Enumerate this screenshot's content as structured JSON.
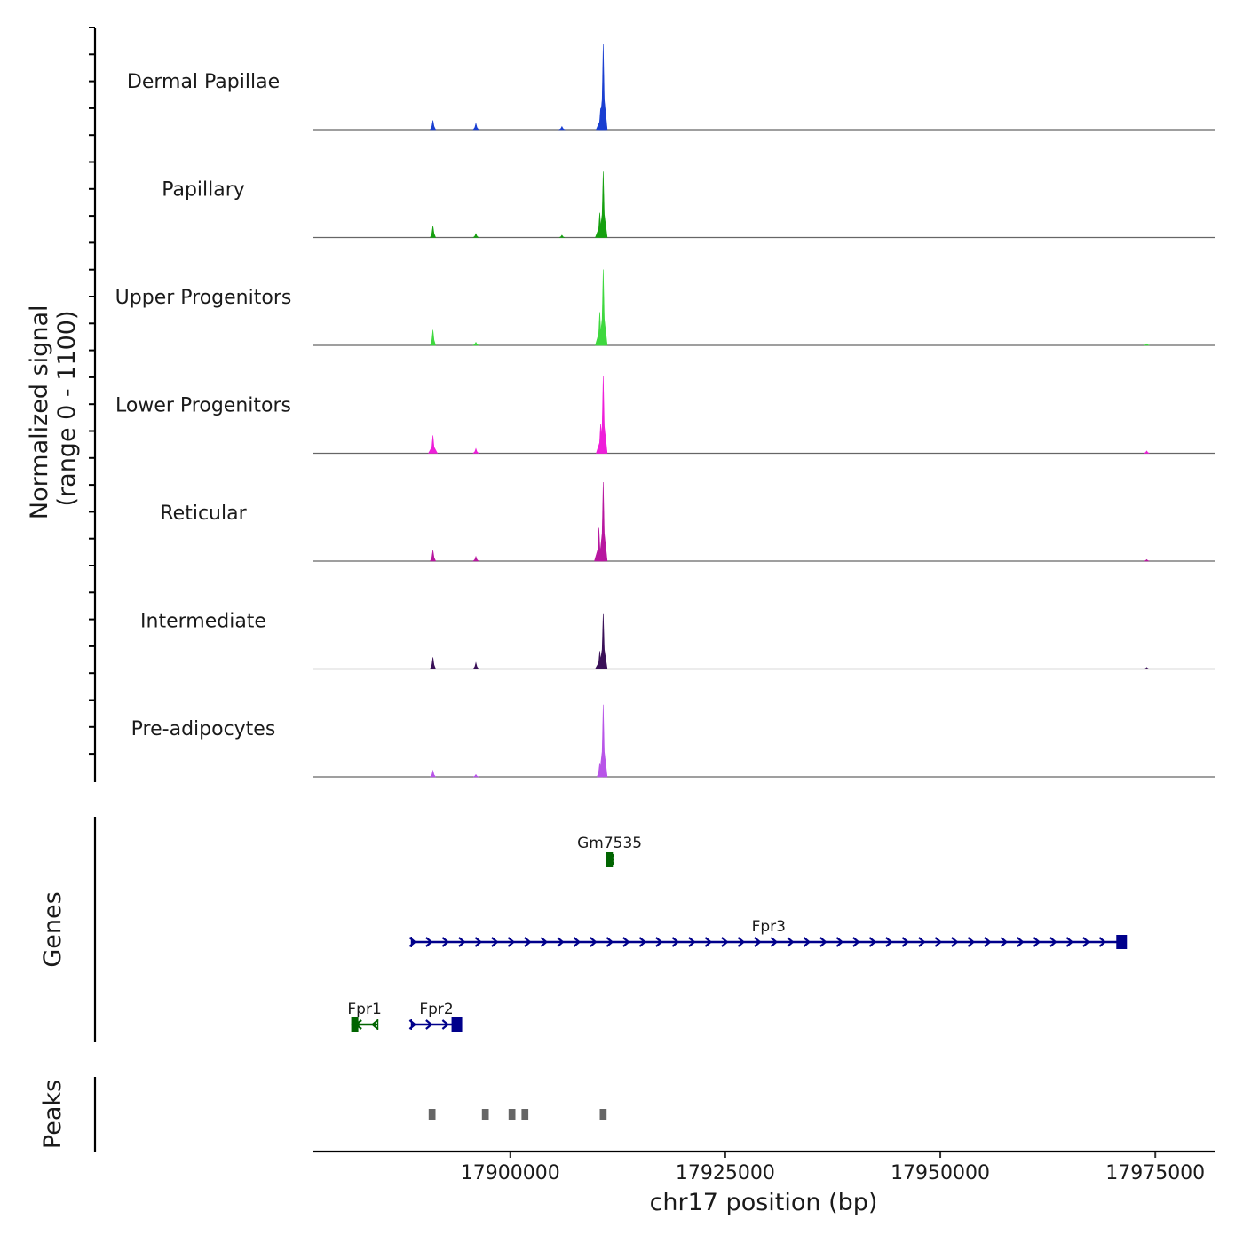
{
  "chart_data": {
    "type": "area",
    "title": "",
    "region": {
      "chrom": "chr17",
      "start": 17877000,
      "end": 17982000
    },
    "ylabel_lines": [
      "Normalized signal",
      "(range 0 - 1100)"
    ],
    "ylim": [
      0,
      1100
    ],
    "xlabel": "chr17 position (bp)",
    "xticks": [
      17900000,
      17925000,
      17950000,
      17975000
    ],
    "xtick_labels": [
      "17900000",
      "17925000",
      "17950000",
      "17975000"
    ],
    "tracks": [
      {
        "name": "Dermal Papillae",
        "color": "#1a3fd1",
        "peaks": [
          {
            "pos": 17891000,
            "value": 120
          },
          {
            "pos": 17896000,
            "value": 80
          },
          {
            "pos": 17906000,
            "value": 40
          },
          {
            "pos": 17910800,
            "value": 1100
          },
          {
            "pos": 17910500,
            "value": 280
          }
        ]
      },
      {
        "name": "Papillary",
        "color": "#16a010",
        "peaks": [
          {
            "pos": 17891000,
            "value": 150
          },
          {
            "pos": 17896000,
            "value": 50
          },
          {
            "pos": 17906000,
            "value": 30
          },
          {
            "pos": 17910800,
            "value": 850
          },
          {
            "pos": 17910400,
            "value": 320
          }
        ]
      },
      {
        "name": "Upper Progenitors",
        "color": "#3fd83f",
        "peaks": [
          {
            "pos": 17891000,
            "value": 200
          },
          {
            "pos": 17896000,
            "value": 40
          },
          {
            "pos": 17910800,
            "value": 980
          },
          {
            "pos": 17910400,
            "value": 430
          },
          {
            "pos": 17974000,
            "value": 20
          }
        ]
      },
      {
        "name": "Lower Progenitors",
        "color": "#ee1fd9",
        "peaks": [
          {
            "pos": 17891000,
            "value": 230
          },
          {
            "pos": 17896000,
            "value": 60
          },
          {
            "pos": 17910800,
            "value": 1000
          },
          {
            "pos": 17910500,
            "value": 380
          },
          {
            "pos": 17974000,
            "value": 30
          }
        ]
      },
      {
        "name": "Reticular",
        "color": "#b7179f",
        "peaks": [
          {
            "pos": 17891000,
            "value": 140
          },
          {
            "pos": 17896000,
            "value": 60
          },
          {
            "pos": 17910800,
            "value": 1020
          },
          {
            "pos": 17910300,
            "value": 430
          },
          {
            "pos": 17974000,
            "value": 20
          }
        ]
      },
      {
        "name": "Intermediate",
        "color": "#3a1158",
        "peaks": [
          {
            "pos": 17891000,
            "value": 150
          },
          {
            "pos": 17896000,
            "value": 80
          },
          {
            "pos": 17910800,
            "value": 720
          },
          {
            "pos": 17910400,
            "value": 230
          },
          {
            "pos": 17974000,
            "value": 20
          }
        ]
      },
      {
        "name": "Pre-adipocytes",
        "color": "#b855e8",
        "peaks": [
          {
            "pos": 17891000,
            "value": 80
          },
          {
            "pos": 17896000,
            "value": 30
          },
          {
            "pos": 17910800,
            "value": 930
          },
          {
            "pos": 17910400,
            "value": 180
          }
        ]
      }
    ],
    "genes_label": "Genes",
    "genes": [
      {
        "name": "Gm7535",
        "start": 17911100,
        "end": 17912000,
        "strand": "-",
        "color": "#006400",
        "row": 0
      },
      {
        "name": "Fpr3",
        "start": 17888500,
        "end": 17971600,
        "strand": "+",
        "color": "#00008b",
        "row": 1
      },
      {
        "name": "Fpr1",
        "start": 17881500,
        "end": 17884600,
        "strand": "-",
        "color": "#006400",
        "row": 2
      },
      {
        "name": "Fpr2",
        "start": 17888500,
        "end": 17894300,
        "strand": "+",
        "color": "#00008b",
        "row": 2
      }
    ],
    "peaks_label": "Peaks",
    "peak_regions": [
      {
        "start": 17890500,
        "end": 17891300
      },
      {
        "start": 17896700,
        "end": 17897500
      },
      {
        "start": 17899800,
        "end": 17900600
      },
      {
        "start": 17901300,
        "end": 17902100
      },
      {
        "start": 17910400,
        "end": 17911200
      }
    ]
  }
}
